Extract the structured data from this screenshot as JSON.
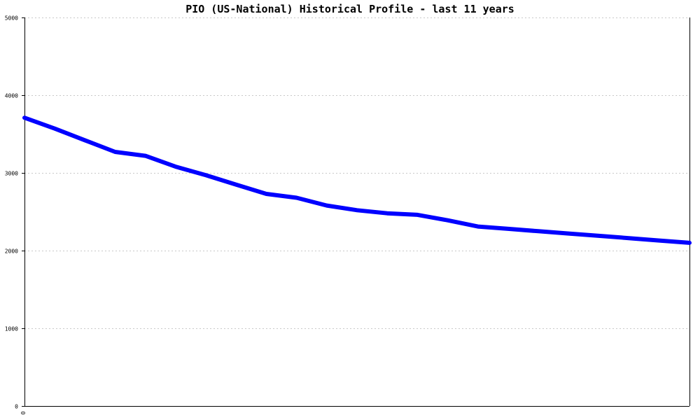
{
  "chart_data": {
    "type": "line",
    "title": "PIO (US-National) Historical Profile - last 11 years",
    "xlabel": "",
    "ylabel": "",
    "ylim": [
      0,
      5000
    ],
    "y_ticks": [
      0,
      1000,
      2000,
      3000,
      4000,
      5000
    ],
    "x_tick_labels": [
      "0"
    ],
    "grid": true,
    "legend": "none",
    "x": [
      0,
      0.5,
      1,
      1.5,
      2,
      2.5,
      3,
      3.5,
      4,
      4.5,
      5,
      5.5,
      6,
      6.5,
      7,
      7.5,
      8,
      8.5,
      9,
      9.5,
      10,
      10.5,
      11
    ],
    "series": [
      {
        "color": "#0000ff",
        "values": [
          3710,
          3570,
          3420,
          3270,
          3220,
          3080,
          2970,
          2850,
          2730,
          2680,
          2580,
          2520,
          2480,
          2460,
          2390,
          2310,
          2280,
          2250,
          2220,
          2190,
          2160,
          2130,
          2100
        ]
      }
    ],
    "x_domain": [
      0,
      11
    ]
  }
}
